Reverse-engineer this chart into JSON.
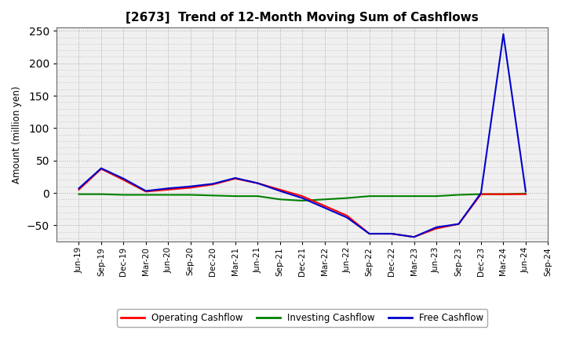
{
  "title": "[2673]  Trend of 12-Month Moving Sum of Cashflows",
  "ylabel": "Amount (million yen)",
  "ylim": [
    -75,
    255
  ],
  "yticks": [
    -50,
    0,
    50,
    100,
    150,
    200,
    250
  ],
  "x_labels": [
    "Jun-19",
    "Sep-19",
    "Dec-19",
    "Mar-20",
    "Jun-20",
    "Sep-20",
    "Dec-20",
    "Mar-21",
    "Jun-21",
    "Sep-21",
    "Dec-21",
    "Mar-22",
    "Jun-22",
    "Sep-22",
    "Dec-22",
    "Mar-23",
    "Jun-23",
    "Sep-23",
    "Dec-23",
    "Mar-24",
    "Jun-24",
    "Sep-24"
  ],
  "operating_cashflow": [
    5,
    37,
    20,
    2,
    5,
    8,
    13,
    22,
    15,
    5,
    -5,
    -20,
    -35,
    -63,
    -63,
    -68,
    -55,
    -48,
    -2,
    -2,
    -2,
    null
  ],
  "investing_cashflow": [
    -2,
    -2,
    -3,
    -3,
    -3,
    -3,
    -4,
    -5,
    -5,
    -10,
    -12,
    -10,
    -8,
    -5,
    -5,
    -5,
    -5,
    -3,
    -2,
    -2,
    -1,
    null
  ],
  "free_cashflow": [
    7,
    38,
    22,
    3,
    7,
    10,
    14,
    23,
    15,
    3,
    -8,
    -23,
    -38,
    -63,
    -63,
    -68,
    -53,
    -48,
    0,
    245,
    2,
    null
  ],
  "operating_color": "#ff0000",
  "investing_color": "#008000",
  "free_color": "#0000cd",
  "bg_color": "#ffffff",
  "plot_bg_color": "#f0f0f0",
  "grid_color": "#cccccc",
  "line_width": 1.5
}
